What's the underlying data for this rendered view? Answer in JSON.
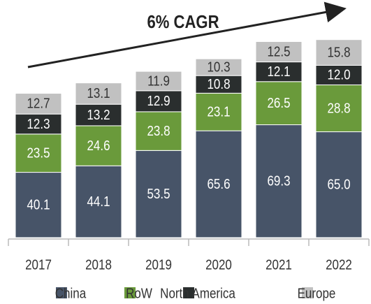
{
  "chart_data": {
    "type": "stacked_bar",
    "annotation": "6% CAGR",
    "categories": [
      "2017",
      "2018",
      "2019",
      "2020",
      "2021",
      "2022"
    ],
    "series": [
      {
        "name": "China",
        "color": "#475468",
        "values": [
          40.1,
          44.1,
          53.5,
          65.6,
          69.3,
          65.0
        ],
        "value_labels": [
          "40.1",
          "44.1",
          "53.5",
          "65.6",
          "69.3",
          "65.0"
        ]
      },
      {
        "name": "RoW",
        "color": "#6a9a3b",
        "values": [
          23.5,
          24.6,
          23.8,
          23.1,
          26.5,
          28.8
        ],
        "value_labels": [
          "23.5",
          "24.6",
          "23.8",
          "23.1",
          "26.5",
          "28.8"
        ]
      },
      {
        "name": "North America",
        "color": "#2a2e2e",
        "values": [
          12.3,
          13.2,
          12.9,
          10.8,
          12.1,
          12.0
        ],
        "value_labels": [
          "12.3",
          "13.2",
          "12.9",
          "10.8",
          "12.1",
          "12.0"
        ]
      },
      {
        "name": "Europe",
        "color": "#c1c1c1",
        "values": [
          12.7,
          13.1,
          11.9,
          10.3,
          12.5,
          15.8
        ],
        "value_labels": [
          "12.7",
          "13.1",
          "11.9",
          "10.3",
          "12.5",
          "15.8"
        ]
      }
    ]
  }
}
